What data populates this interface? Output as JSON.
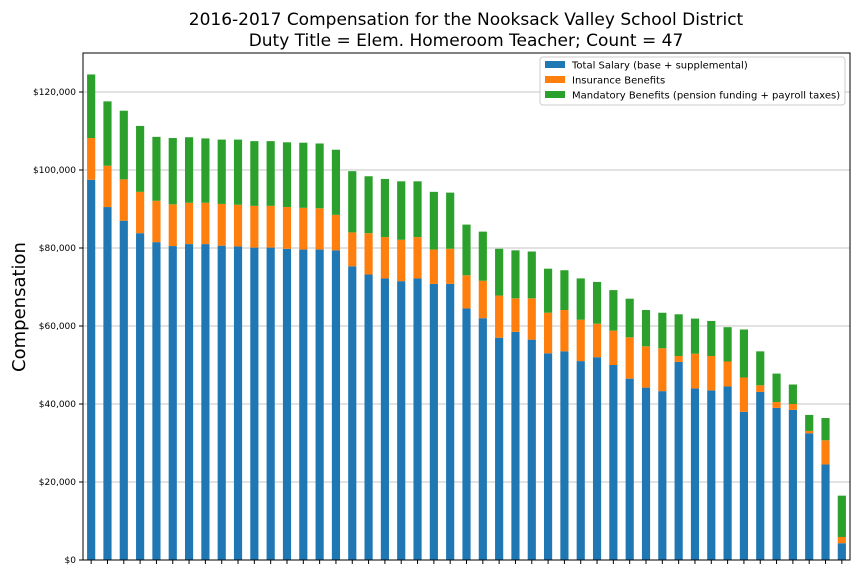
{
  "chart_data": {
    "type": "bar",
    "stacked": true,
    "title": "2016-2017 Compensation for the Nooksack Valley School District",
    "subtitle": "Duty Title = Elem. Homeroom Teacher; Count = 47",
    "xlabel": "",
    "ylabel": "Compensation",
    "ylim": [
      0,
      130000
    ],
    "yticks": [
      0,
      20000,
      40000,
      60000,
      80000,
      100000,
      120000
    ],
    "ytick_labels": [
      "$0",
      "$20,000",
      "$40,000",
      "$60,000",
      "$80,000",
      "$100,000",
      "$120,000"
    ],
    "grid": "horizontal",
    "legend_position": "top-right",
    "series": [
      {
        "name": "Total Salary (base + supplemental)",
        "color": "#1f77b4",
        "values": [
          97500,
          90500,
          87000,
          83800,
          81500,
          80500,
          81000,
          81000,
          80600,
          80400,
          80100,
          80100,
          79800,
          79600,
          79600,
          79400,
          75300,
          73200,
          72200,
          71500,
          72200,
          70800,
          70800,
          64500,
          62000,
          57000,
          58500,
          56500,
          53000,
          53500,
          51000,
          52000,
          50000,
          46500,
          44200,
          43300,
          50800,
          44000,
          43500,
          44500,
          38000,
          43100,
          39000,
          38500,
          32500,
          24500,
          4300
        ]
      },
      {
        "name": "Insurance Benefits",
        "color": "#ff7f0e",
        "values": [
          10700,
          10600,
          10600,
          10600,
          10600,
          10700,
          10600,
          10600,
          10700,
          10700,
          10700,
          10700,
          10700,
          10700,
          10600,
          9100,
          8700,
          10600,
          10600,
          10600,
          10600,
          8800,
          9000,
          8500,
          9600,
          10800,
          8600,
          10600,
          10400,
          10600,
          10600,
          8600,
          8800,
          10600,
          10600,
          11000,
          1500,
          8900,
          8800,
          6400,
          8800,
          1700,
          1500,
          1500,
          600,
          6200,
          1600
        ]
      },
      {
        "name": "Mandatory Benefits (pension funding + payroll taxes)",
        "color": "#2ca02c",
        "values": [
          16300,
          16500,
          17600,
          16900,
          16400,
          17000,
          16800,
          16500,
          16500,
          16700,
          16600,
          16600,
          16600,
          16700,
          16600,
          16700,
          15700,
          14600,
          14900,
          15000,
          14300,
          14800,
          14400,
          13000,
          12600,
          12000,
          12300,
          12000,
          11300,
          10200,
          10600,
          10700,
          10400,
          9900,
          9300,
          9100,
          10700,
          9000,
          9000,
          8800,
          12300,
          8700,
          7300,
          5000,
          4100,
          5700,
          10600
        ]
      }
    ]
  }
}
